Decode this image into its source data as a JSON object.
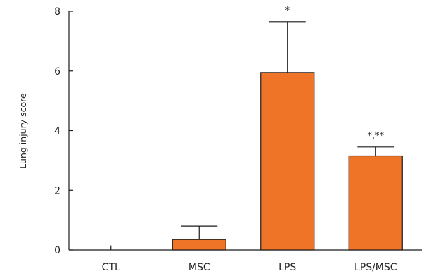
{
  "chart_data": {
    "type": "bar",
    "categories": [
      "CTL",
      "MSC",
      "LPS",
      "LPS/MSC"
    ],
    "values": [
      0,
      0.35,
      5.95,
      3.15
    ],
    "error_upper": [
      0.15,
      0.8,
      7.65,
      3.45
    ],
    "annotations": [
      "",
      "",
      "*",
      "*,**"
    ],
    "ylabel": "Lung injury score",
    "xlabel": "",
    "title": "",
    "ylim": [
      0,
      8
    ],
    "yticks": [
      0,
      2,
      4,
      6,
      8
    ],
    "bar_color": "#f07427",
    "bar_edge_color": "#1a1a1a",
    "axis_color": "#1a1a1a",
    "grid": false
  }
}
